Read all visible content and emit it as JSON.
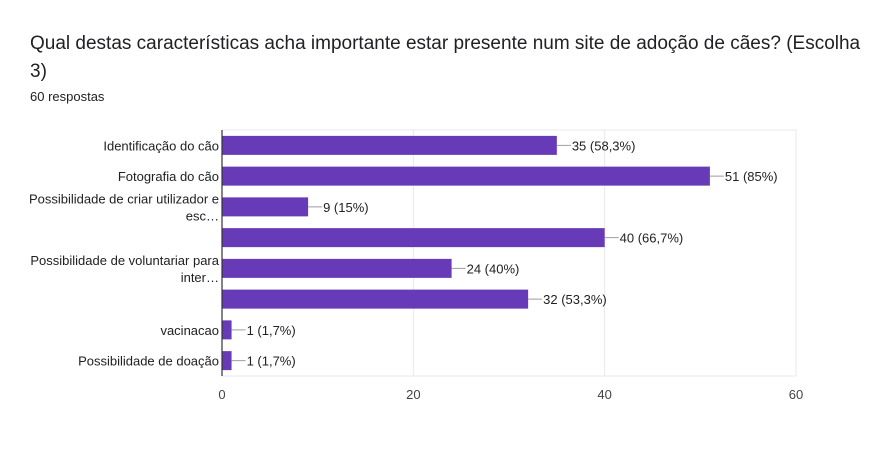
{
  "header": {
    "title": "Qual destas características acha importante estar presente num site de adoção de cães? (Escolha 3)",
    "subtitle": "60 respostas"
  },
  "chart_data": {
    "type": "bar",
    "orientation": "horizontal",
    "categories": [
      [
        "Identificação do cão"
      ],
      [
        "Fotografia do cão"
      ],
      [
        "Possibilidade de criar utilizador e",
        "esc…"
      ],
      [],
      [
        "Possibilidade de voluntariar para",
        "inter…"
      ],
      [],
      [
        "vacinacao"
      ],
      [
        "Possibilidade de doação"
      ]
    ],
    "values": [
      35,
      51,
      9,
      40,
      24,
      32,
      1,
      1
    ],
    "data_labels": [
      "35 (58,3%)",
      "51 (85%)",
      "9 (15%)",
      "40 (66,7%)",
      "24 (40%)",
      "32 (53,3%)",
      "1 (1,7%)",
      "1 (1,7%)"
    ],
    "xlim": [
      0,
      60
    ],
    "xticks": [
      0,
      20,
      40,
      60
    ],
    "grid": true,
    "bar_color": "#673ab7"
  }
}
